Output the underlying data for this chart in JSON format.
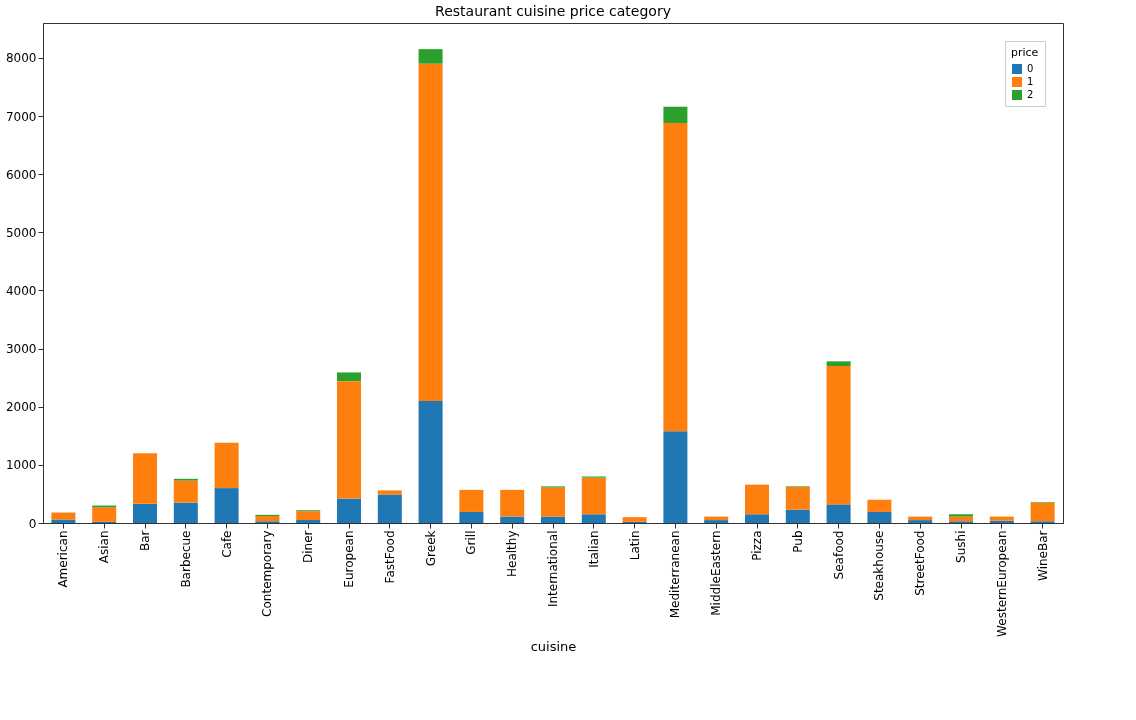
{
  "chart_data": {
    "type": "bar",
    "title": "Restaurant cuisine price category",
    "xlabel": "cuisine",
    "legend_title": "price",
    "stacked": true,
    "legend": "top right",
    "grid": false,
    "categories": [
      "American",
      "Asian",
      "Bar",
      "Barbecue",
      "Cafe",
      "Contemporary",
      "Diner",
      "European",
      "FastFood",
      "Greek",
      "Grill",
      "Healthy",
      "International",
      "Italian",
      "Latin",
      "Mediterranean",
      "MiddleEastern",
      "Pizza",
      "Pub",
      "Seafood",
      "Steakhouse",
      "StreetFood",
      "Sushi",
      "WesternEuropean",
      "WineBar"
    ],
    "series": [
      {
        "name": "0",
        "color": "#1f77b4",
        "values": [
          60,
          20,
          330,
          350,
          600,
          30,
          50,
          420,
          490,
          2100,
          190,
          110,
          110,
          150,
          20,
          1580,
          50,
          150,
          230,
          320,
          190,
          50,
          30,
          40,
          30
        ]
      },
      {
        "name": "1",
        "color": "#ff7f0e",
        "values": [
          120,
          250,
          870,
          380,
          780,
          90,
          150,
          2020,
          70,
          5800,
          380,
          460,
          500,
          630,
          80,
          5300,
          60,
          510,
          390,
          2380,
          210,
          60,
          80,
          70,
          320
        ]
      },
      {
        "name": "2",
        "color": "#2ca02c",
        "values": [
          0,
          30,
          0,
          30,
          0,
          20,
          20,
          150,
          0,
          250,
          0,
          0,
          20,
          20,
          0,
          280,
          0,
          0,
          10,
          80,
          0,
          0,
          40,
          0,
          10
        ]
      }
    ],
    "ylim": [
      0,
      8600
    ],
    "yticks": [
      0,
      1000,
      2000,
      3000,
      4000,
      5000,
      6000,
      7000,
      8000
    ]
  }
}
